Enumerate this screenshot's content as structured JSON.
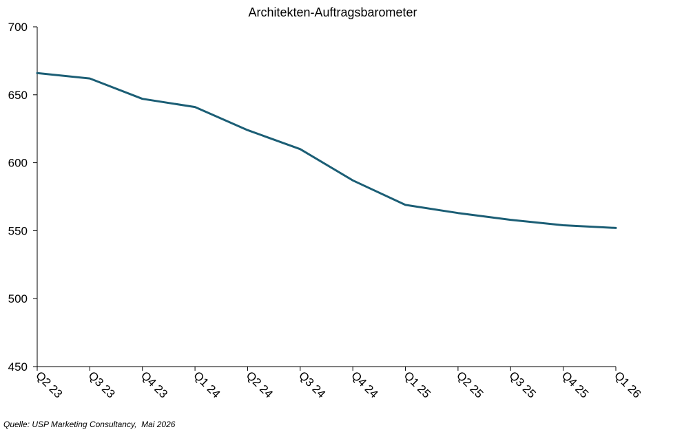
{
  "chart_data": {
    "type": "line",
    "title": "Architekten-Auftragsbarometer",
    "xlabel": "",
    "ylabel": "",
    "categories": [
      "Q2 23",
      "Q3 23",
      "Q4 23",
      "Q1 24",
      "Q2 24",
      "Q3 24",
      "Q4 24",
      "Q1 25",
      "Q2 25",
      "Q3 25",
      "Q4 25",
      "Q1 26"
    ],
    "series": [
      {
        "values": [
          666,
          662,
          647,
          641,
          624,
          610,
          587,
          569,
          563,
          558,
          554,
          552
        ]
      }
    ],
    "ylim": [
      450,
      700
    ],
    "yticks": [
      "450",
      "500",
      "550",
      "600",
      "650",
      "700"
    ],
    "grid": false,
    "legend": "none",
    "line_color": "#1b5e75"
  },
  "source_text": "Quelle: USP Marketing Consultancy,  Mai 2026"
}
